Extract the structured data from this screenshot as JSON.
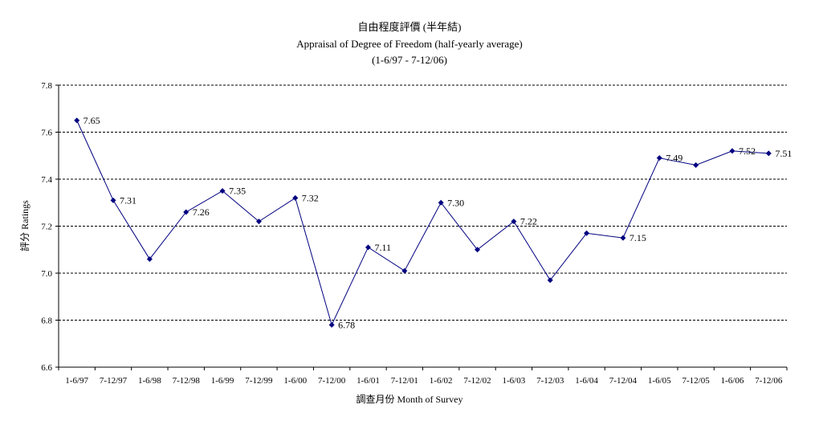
{
  "chart_data": {
    "type": "line",
    "title": [
      "自由程度評價 (半年結)",
      "Appraisal of Degree of Freedom (half-yearly average)",
      "(1-6/97 - 7-12/06)"
    ],
    "xlabel": "調查月份 Month of Survey",
    "ylabel": "評分 Ratings",
    "ylim": [
      6.6,
      7.8
    ],
    "yticks": [
      "6.6",
      "6.8",
      "7.0",
      "7.2",
      "7.4",
      "7.6",
      "7.8"
    ],
    "grid": true,
    "categories": [
      "1-6/97",
      "7-12/97",
      "1-6/98",
      "7-12/98",
      "1-6/99",
      "7-12/99",
      "1-6/00",
      "7-12/00",
      "1-6/01",
      "7-12/01",
      "1-6/02",
      "7-12/02",
      "1-6/03",
      "7-12/03",
      "1-6/04",
      "7-12/04",
      "1-6/05",
      "7-12/05",
      "1-6/06",
      "7-12/06"
    ],
    "series": [
      {
        "values": [
          7.65,
          7.31,
          7.06,
          7.26,
          7.35,
          7.22,
          7.32,
          6.78,
          7.11,
          7.01,
          7.3,
          7.1,
          7.22,
          6.97,
          7.17,
          7.15,
          7.49,
          7.46,
          7.52,
          7.51
        ],
        "labels": [
          "7.65",
          "7.31",
          "",
          "7.26",
          "7.35",
          "",
          "7.32",
          "6.78",
          "7.11",
          "",
          "7.30",
          "",
          "7.22",
          "",
          "",
          "7.15",
          "7.49",
          "",
          "7.52",
          "7.51"
        ],
        "color": "#000080"
      }
    ]
  }
}
